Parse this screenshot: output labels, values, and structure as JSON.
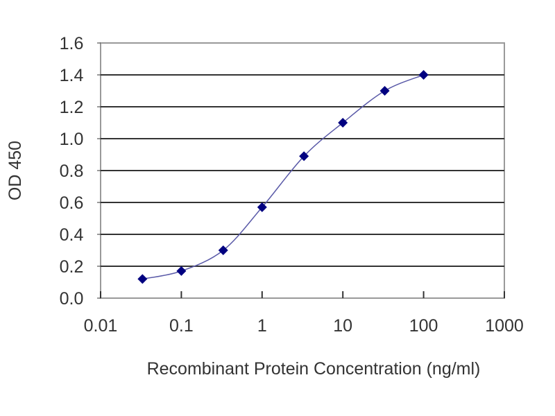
{
  "chart_data": {
    "type": "line",
    "title": "",
    "xlabel": "Recombinant Protein Concentration  (ng/ml)",
    "ylabel": "OD 450",
    "xscale": "log",
    "xlim": [
      0.01,
      1000
    ],
    "ylim": [
      0,
      1.6
    ],
    "xticks": [
      "0.01",
      "0.1",
      "1",
      "10",
      "100",
      "1000"
    ],
    "yticks": [
      "0.0",
      "0.2",
      "0.4",
      "0.6",
      "0.8",
      "1.0",
      "1.2",
      "1.4",
      "1.6"
    ],
    "grid": "horizontal",
    "series": [
      {
        "x": [
          0.033,
          0.1,
          0.33,
          1,
          3.3,
          10,
          33,
          100
        ],
        "y": [
          0.12,
          0.17,
          0.3,
          0.57,
          0.89,
          1.1,
          1.3,
          1.4
        ],
        "marker": "diamond",
        "color": "#000080",
        "line_color": "#5a5aa8"
      }
    ]
  }
}
